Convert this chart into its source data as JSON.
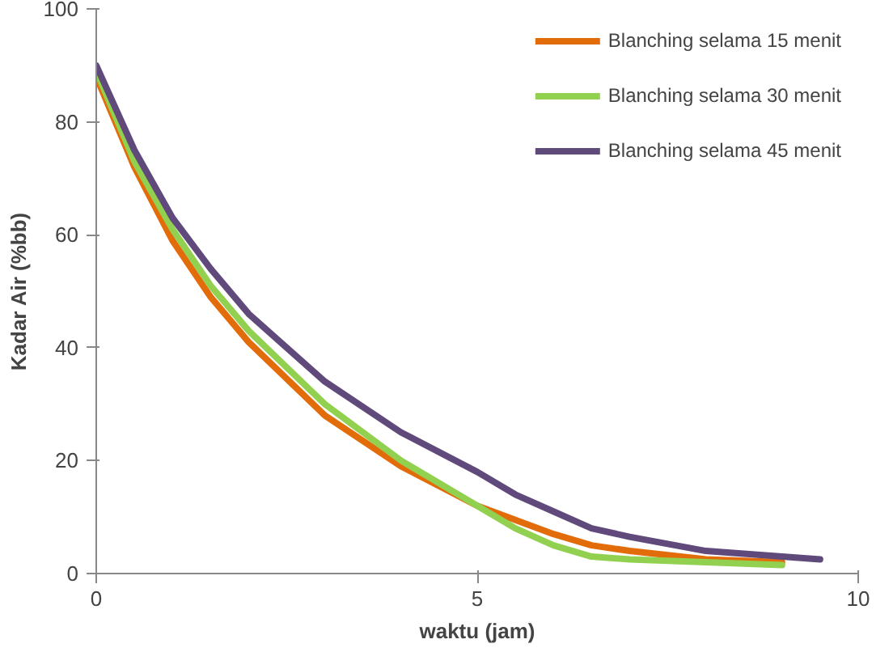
{
  "chart_data": {
    "type": "line",
    "xlabel": "waktu (jam)",
    "ylabel": "Kadar Air (%bb)",
    "xlim": [
      0,
      10
    ],
    "ylim": [
      0,
      100
    ],
    "xticks": [
      0,
      5,
      10
    ],
    "yticks": [
      0,
      20,
      40,
      60,
      80,
      100
    ],
    "grid": false,
    "legend": "top right",
    "line_style": "solid",
    "marker": "none",
    "series": [
      {
        "name": "Blanching selama 15 menit",
        "color": "#e36c0a",
        "x": [
          0,
          0.5,
          1,
          1.5,
          2,
          3,
          4,
          5,
          6,
          6.5,
          7,
          8,
          9
        ],
        "values": [
          88,
          72,
          59,
          49,
          41,
          28,
          19,
          12,
          7,
          5,
          4,
          2.5,
          2
        ]
      },
      {
        "name": "Blanching selama 30 menit",
        "color": "#92d050",
        "x": [
          0,
          0.5,
          1,
          1.5,
          2,
          3,
          4,
          5,
          5.5,
          6,
          6.5,
          7,
          8,
          9
        ],
        "values": [
          89,
          73,
          61,
          51,
          43,
          30,
          20,
          12,
          8,
          5,
          3,
          2.5,
          2,
          1.5
        ]
      },
      {
        "name": "Blanching selama 45 menit",
        "color": "#604a7b",
        "x": [
          0,
          0.5,
          1,
          1.5,
          2,
          3,
          4,
          5,
          5.5,
          6,
          6.5,
          7,
          8,
          9,
          9.5
        ],
        "values": [
          90,
          75,
          63,
          54,
          46,
          34,
          25,
          18,
          14,
          11,
          8,
          6.5,
          4,
          3,
          2.5
        ]
      }
    ]
  }
}
